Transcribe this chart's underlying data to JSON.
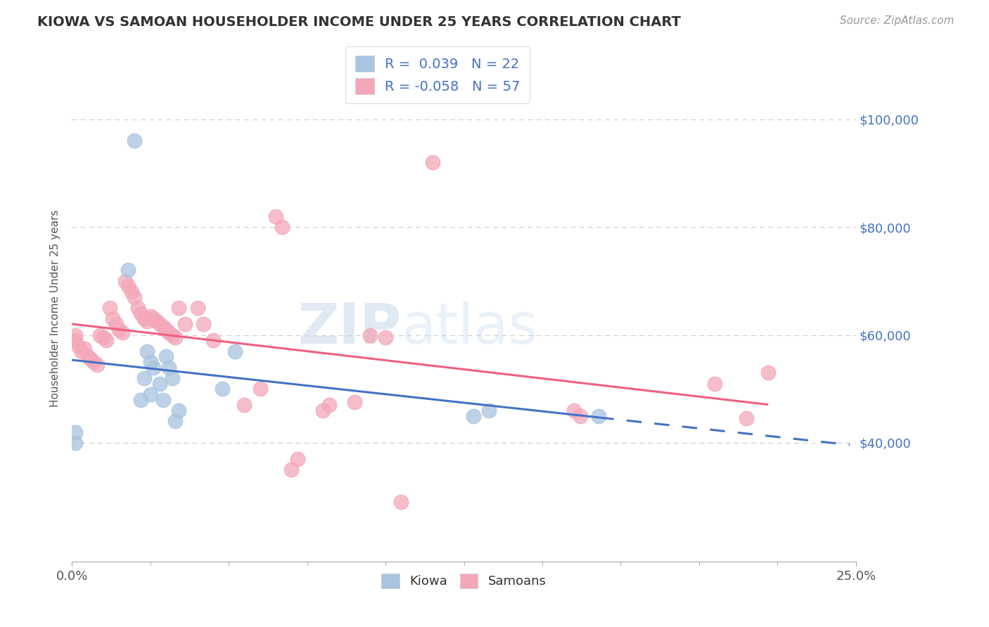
{
  "title": "KIOWA VS SAMOAN HOUSEHOLDER INCOME UNDER 25 YEARS CORRELATION CHART",
  "source": "Source: ZipAtlas.com",
  "ylabel": "Householder Income Under 25 years",
  "y_tick_labels": [
    "$40,000",
    "$60,000",
    "$80,000",
    "$100,000"
  ],
  "y_tick_values": [
    40000,
    60000,
    80000,
    100000
  ],
  "xlim": [
    0.0,
    0.25
  ],
  "ylim": [
    18000,
    112000
  ],
  "kiowa_R": 0.039,
  "kiowa_N": 22,
  "samoan_R": -0.058,
  "samoan_N": 57,
  "kiowa_color": "#a8c4e0",
  "samoan_color": "#f4a7b9",
  "kiowa_line_color": "#4472c4",
  "samoan_line_color": "#f06080",
  "legend_text_color": "#4472c4",
  "kiowa_x": [
    0.001,
    0.001,
    0.018,
    0.02,
    0.022,
    0.023,
    0.024,
    0.025,
    0.025,
    0.026,
    0.028,
    0.029,
    0.03,
    0.031,
    0.032,
    0.033,
    0.034,
    0.048,
    0.052,
    0.128,
    0.133,
    0.168
  ],
  "kiowa_y": [
    42000,
    40000,
    72000,
    96000,
    48000,
    52000,
    57000,
    55000,
    49000,
    54000,
    51000,
    48000,
    56000,
    54000,
    52000,
    44000,
    46000,
    50000,
    57000,
    45000,
    46000,
    45000
  ],
  "samoan_x": [
    0.001,
    0.001,
    0.002,
    0.003,
    0.004,
    0.005,
    0.006,
    0.007,
    0.008,
    0.009,
    0.01,
    0.011,
    0.012,
    0.013,
    0.014,
    0.015,
    0.016,
    0.017,
    0.018,
    0.019,
    0.02,
    0.021,
    0.022,
    0.023,
    0.024,
    0.025,
    0.026,
    0.027,
    0.028,
    0.029,
    0.03,
    0.031,
    0.032,
    0.033,
    0.034,
    0.036,
    0.04,
    0.042,
    0.045,
    0.055,
    0.06,
    0.065,
    0.067,
    0.07,
    0.072,
    0.08,
    0.082,
    0.09,
    0.095,
    0.1,
    0.105,
    0.115,
    0.16,
    0.162,
    0.205,
    0.215,
    0.222
  ],
  "samoan_y": [
    60000,
    59000,
    58000,
    57000,
    57500,
    56000,
    55500,
    55000,
    54500,
    60000,
    59500,
    59000,
    65000,
    63000,
    62000,
    61000,
    60500,
    70000,
    69000,
    68000,
    67000,
    65000,
    64000,
    63000,
    62500,
    63500,
    63000,
    62500,
    62000,
    61500,
    61000,
    60500,
    60000,
    59500,
    65000,
    62000,
    65000,
    62000,
    59000,
    47000,
    50000,
    82000,
    80000,
    35000,
    37000,
    46000,
    47000,
    47500,
    60000,
    59500,
    29000,
    92000,
    46000,
    45000,
    51000,
    44500,
    53000
  ]
}
